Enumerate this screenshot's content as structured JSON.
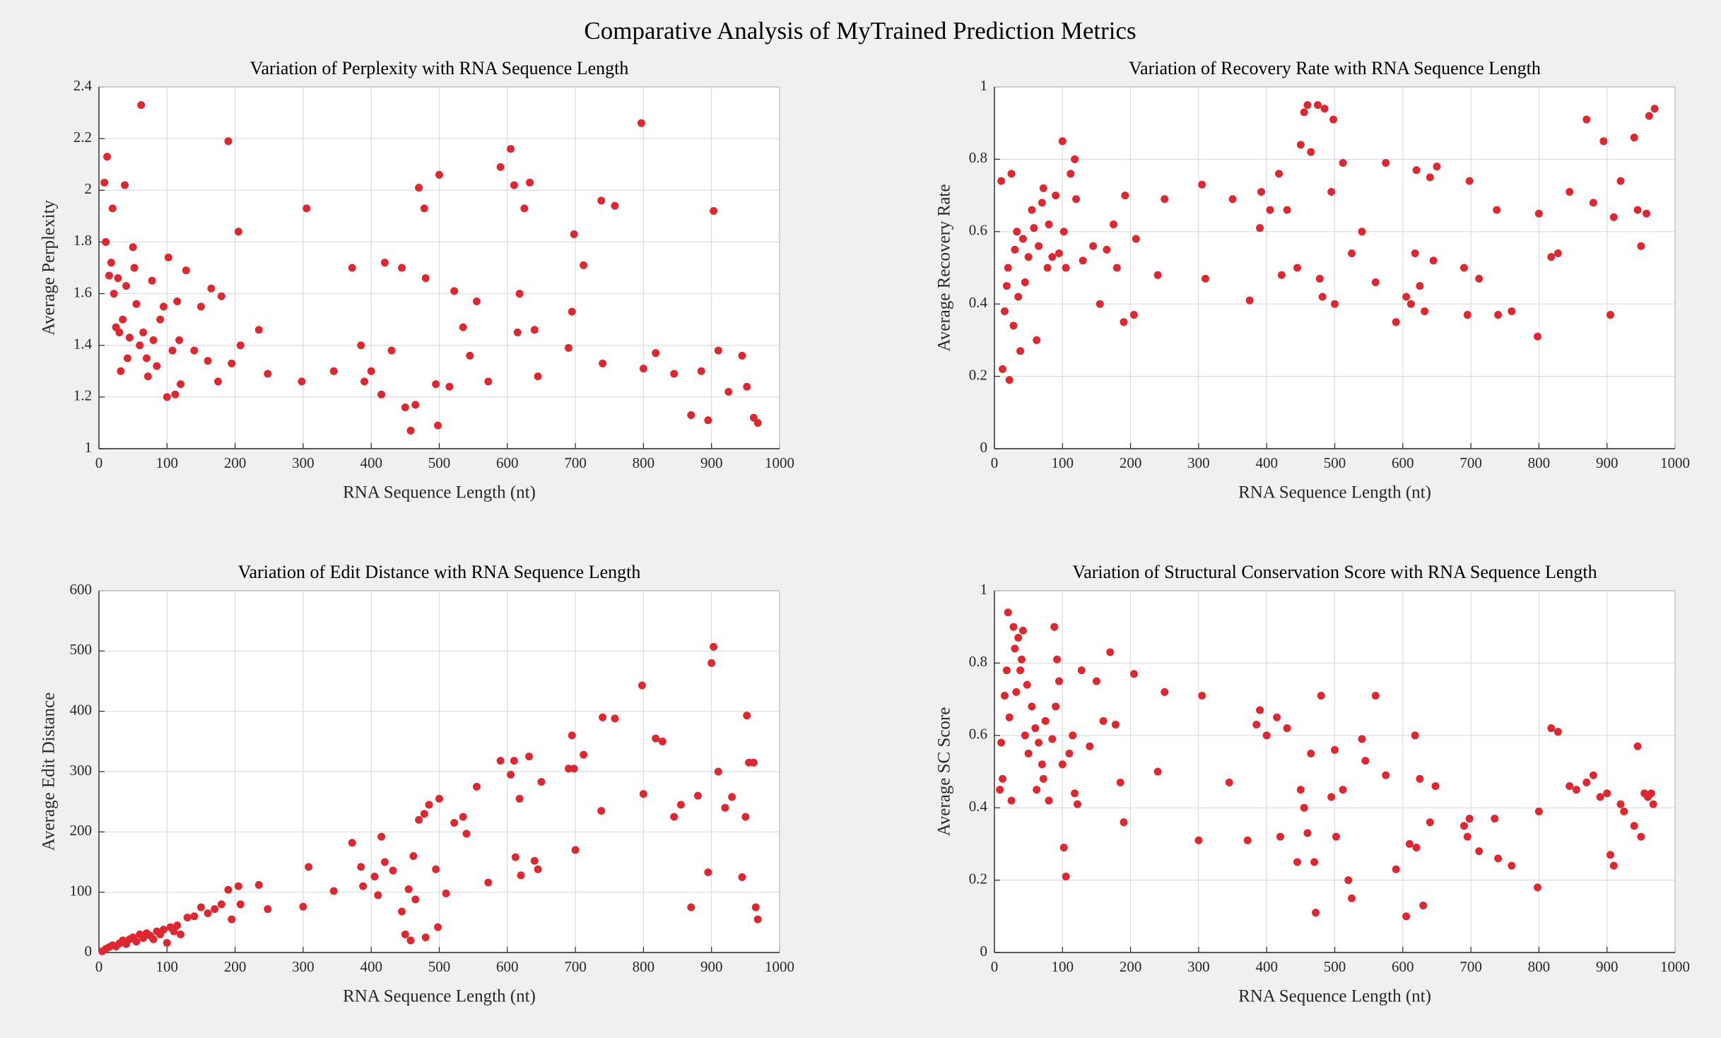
{
  "title": "Comparative Analysis of MyTrained Prediction Metrics",
  "chart_data": [
    {
      "type": "scatter",
      "title": "Variation of Perplexity with RNA Sequence Length",
      "x_label": "RNA Sequence Length (nt)",
      "y_label": "Average Perplexity",
      "color": "#e0262e",
      "grid": true,
      "xlim": [
        0,
        1000
      ],
      "xticks": [
        0,
        100,
        200,
        300,
        400,
        500,
        600,
        700,
        800,
        900,
        1000
      ],
      "ylim": [
        1,
        2.4
      ],
      "yticks": [
        1,
        1.2,
        1.4,
        1.6,
        1.8,
        2,
        2.2,
        2.4
      ],
      "x": [
        8,
        12,
        10,
        15,
        18,
        20,
        22,
        25,
        28,
        30,
        32,
        35,
        38,
        40,
        42,
        45,
        50,
        52,
        55,
        60,
        62,
        65,
        70,
        72,
        78,
        80,
        85,
        90,
        95,
        100,
        102,
        108,
        112,
        115,
        118,
        120,
        128,
        140,
        150,
        160,
        165,
        175,
        180,
        190,
        195,
        205,
        208,
        235,
        248,
        298,
        305,
        345,
        372,
        385,
        390,
        400,
        415,
        420,
        430,
        445,
        450,
        458,
        465,
        470,
        478,
        480,
        495,
        498,
        500,
        515,
        522,
        535,
        545,
        555,
        572,
        590,
        605,
        610,
        615,
        618,
        625,
        633,
        640,
        645,
        690,
        695,
        698,
        712,
        738,
        740,
        758,
        797,
        800,
        818,
        845,
        870,
        885,
        895,
        903,
        910,
        925,
        945,
        952,
        962,
        968
      ],
      "values": [
        2.03,
        2.13,
        1.8,
        1.67,
        1.72,
        1.93,
        1.6,
        1.47,
        1.66,
        1.45,
        1.3,
        1.5,
        2.02,
        1.63,
        1.35,
        1.43,
        1.78,
        1.7,
        1.56,
        1.4,
        2.33,
        1.45,
        1.35,
        1.28,
        1.65,
        1.42,
        1.32,
        1.5,
        1.55,
        1.2,
        1.74,
        1.38,
        1.21,
        1.57,
        1.42,
        1.25,
        1.69,
        1.38,
        1.55,
        1.34,
        1.62,
        1.26,
        1.59,
        2.19,
        1.33,
        1.84,
        1.4,
        1.46,
        1.29,
        1.26,
        1.93,
        1.3,
        1.7,
        1.4,
        1.26,
        1.3,
        1.21,
        1.72,
        1.38,
        1.7,
        1.16,
        1.07,
        1.17,
        2.01,
        1.93,
        1.66,
        1.25,
        1.09,
        2.06,
        1.24,
        1.61,
        1.47,
        1.36,
        1.57,
        1.26,
        2.09,
        2.16,
        2.02,
        1.45,
        1.6,
        1.93,
        2.03,
        1.46,
        1.28,
        1.39,
        1.53,
        1.83,
        1.71,
        1.96,
        1.33,
        1.94,
        2.26,
        1.31,
        1.37,
        1.29,
        1.13,
        1.3,
        1.11,
        1.92,
        1.38,
        1.22,
        1.36,
        1.24,
        1.12,
        1.1
      ]
    },
    {
      "type": "scatter",
      "title": "Variation of Recovery Rate with RNA Sequence Length",
      "x_label": "RNA Sequence Length (nt)",
      "y_label": "Average Recovery Rate",
      "color": "#e0262e",
      "grid": true,
      "xlim": [
        0,
        1000
      ],
      "xticks": [
        0,
        100,
        200,
        300,
        400,
        500,
        600,
        700,
        800,
        900,
        1000
      ],
      "ylim": [
        0,
        1
      ],
      "yticks": [
        0,
        0.2,
        0.4,
        0.6,
        0.8,
        1
      ],
      "x": [
        10,
        12,
        15,
        18,
        20,
        22,
        25,
        28,
        30,
        33,
        35,
        38,
        42,
        45,
        50,
        55,
        58,
        62,
        65,
        70,
        72,
        78,
        80,
        85,
        90,
        95,
        100,
        102,
        105,
        112,
        118,
        120,
        130,
        145,
        155,
        165,
        175,
        180,
        190,
        192,
        205,
        208,
        240,
        250,
        305,
        310,
        350,
        375,
        390,
        392,
        405,
        418,
        422,
        430,
        445,
        450,
        455,
        460,
        465,
        475,
        478,
        482,
        485,
        495,
        498,
        500,
        512,
        525,
        540,
        560,
        575,
        590,
        605,
        612,
        618,
        620,
        625,
        632,
        640,
        645,
        650,
        690,
        695,
        698,
        712,
        738,
        740,
        760,
        798,
        800,
        818,
        828,
        845,
        870,
        880,
        895,
        905,
        910,
        920,
        940,
        945,
        950,
        958,
        962,
        970
      ],
      "values": [
        0.74,
        0.22,
        0.38,
        0.45,
        0.5,
        0.19,
        0.76,
        0.34,
        0.55,
        0.6,
        0.42,
        0.27,
        0.58,
        0.46,
        0.53,
        0.66,
        0.61,
        0.3,
        0.56,
        0.68,
        0.72,
        0.5,
        0.62,
        0.53,
        0.7,
        0.54,
        0.85,
        0.6,
        0.5,
        0.76,
        0.8,
        0.69,
        0.52,
        0.56,
        0.4,
        0.55,
        0.62,
        0.5,
        0.35,
        0.7,
        0.37,
        0.58,
        0.48,
        0.69,
        0.73,
        0.47,
        0.69,
        0.41,
        0.61,
        0.71,
        0.66,
        0.76,
        0.48,
        0.66,
        0.5,
        0.84,
        0.93,
        0.95,
        0.82,
        0.95,
        0.47,
        0.42,
        0.94,
        0.71,
        0.91,
        0.4,
        0.79,
        0.54,
        0.6,
        0.46,
        0.79,
        0.35,
        0.42,
        0.4,
        0.54,
        0.77,
        0.45,
        0.38,
        0.75,
        0.52,
        0.78,
        0.5,
        0.37,
        0.74,
        0.47,
        0.66,
        0.37,
        0.38,
        0.31,
        0.65,
        0.53,
        0.54,
        0.71,
        0.91,
        0.68,
        0.85,
        0.37,
        0.64,
        0.74,
        0.86,
        0.66,
        0.56,
        0.65,
        0.92,
        0.94
      ]
    },
    {
      "type": "scatter",
      "title": "Variation of Edit Distance with RNA Sequence Length",
      "x_label": "RNA Sequence Length (nt)",
      "y_label": "Average Edit Distance",
      "color": "#e0262e",
      "grid": true,
      "xlim": [
        0,
        1000
      ],
      "xticks": [
        0,
        100,
        200,
        300,
        400,
        500,
        600,
        700,
        800,
        900,
        1000
      ],
      "ylim": [
        0,
        600
      ],
      "yticks": [
        0,
        100,
        200,
        300,
        400,
        500,
        600
      ],
      "x": [
        5,
        10,
        15,
        20,
        25,
        30,
        35,
        40,
        45,
        50,
        55,
        60,
        65,
        70,
        75,
        80,
        85,
        90,
        95,
        100,
        105,
        110,
        115,
        120,
        130,
        140,
        150,
        160,
        170,
        180,
        190,
        195,
        205,
        208,
        235,
        248,
        300,
        308,
        345,
        372,
        385,
        388,
        405,
        410,
        415,
        420,
        432,
        445,
        450,
        455,
        458,
        462,
        465,
        470,
        478,
        480,
        485,
        495,
        498,
        500,
        510,
        522,
        535,
        540,
        555,
        572,
        590,
        605,
        610,
        612,
        618,
        620,
        632,
        640,
        645,
        650,
        690,
        695,
        698,
        700,
        712,
        738,
        740,
        758,
        798,
        800,
        818,
        828,
        845,
        855,
        870,
        880,
        895,
        900,
        903,
        910,
        920,
        930,
        945,
        950,
        952,
        955,
        962,
        965,
        968
      ],
      "values": [
        2,
        6,
        9,
        12,
        10,
        15,
        20,
        14,
        22,
        25,
        18,
        30,
        24,
        32,
        28,
        22,
        35,
        30,
        38,
        16,
        42,
        35,
        45,
        30,
        58,
        60,
        75,
        65,
        72,
        80,
        104,
        55,
        110,
        80,
        112,
        72,
        76,
        142,
        102,
        182,
        142,
        110,
        126,
        95,
        192,
        150,
        136,
        68,
        30,
        105,
        20,
        160,
        88,
        220,
        230,
        25,
        245,
        138,
        42,
        255,
        98,
        215,
        225,
        197,
        275,
        116,
        318,
        295,
        318,
        158,
        255,
        128,
        325,
        152,
        138,
        283,
        305,
        360,
        305,
        170,
        328,
        235,
        390,
        388,
        443,
        263,
        355,
        350,
        225,
        245,
        75,
        260,
        133,
        480,
        507,
        300,
        240,
        258,
        125,
        225,
        393,
        315,
        315,
        75,
        55
      ]
    },
    {
      "type": "scatter",
      "title": "Variation of Structural Conservation Score with RNA Sequence Length",
      "x_label": "RNA Sequence Length (nt)",
      "y_label": "Average SC Score",
      "color": "#e0262e",
      "grid": true,
      "xlim": [
        0,
        1000
      ],
      "xticks": [
        0,
        100,
        200,
        300,
        400,
        500,
        600,
        700,
        800,
        900,
        1000
      ],
      "ylim": [
        0,
        1
      ],
      "yticks": [
        0,
        0.2,
        0.4,
        0.6,
        0.8,
        1
      ],
      "x": [
        8,
        10,
        12,
        15,
        18,
        20,
        22,
        25,
        28,
        30,
        32,
        35,
        38,
        40,
        42,
        45,
        48,
        50,
        55,
        60,
        62,
        65,
        70,
        72,
        75,
        80,
        85,
        88,
        90,
        92,
        95,
        100,
        102,
        105,
        110,
        115,
        118,
        122,
        128,
        140,
        150,
        160,
        170,
        178,
        185,
        190,
        205,
        240,
        250,
        300,
        305,
        345,
        372,
        385,
        390,
        400,
        415,
        420,
        430,
        445,
        450,
        455,
        460,
        465,
        470,
        472,
        480,
        495,
        500,
        502,
        512,
        520,
        525,
        540,
        545,
        560,
        575,
        590,
        605,
        610,
        618,
        620,
        625,
        630,
        640,
        648,
        690,
        695,
        698,
        712,
        735,
        740,
        760,
        798,
        800,
        818,
        828,
        845,
        855,
        870,
        880,
        890,
        900,
        905,
        910,
        920,
        925,
        940,
        945,
        950,
        955,
        960,
        965,
        968
      ],
      "values": [
        0.45,
        0.58,
        0.48,
        0.71,
        0.78,
        0.94,
        0.65,
        0.42,
        0.9,
        0.84,
        0.72,
        0.87,
        0.78,
        0.81,
        0.89,
        0.6,
        0.74,
        0.55,
        0.68,
        0.62,
        0.45,
        0.58,
        0.52,
        0.48,
        0.64,
        0.42,
        0.59,
        0.9,
        0.68,
        0.81,
        0.75,
        0.52,
        0.29,
        0.21,
        0.55,
        0.6,
        0.44,
        0.41,
        0.78,
        0.57,
        0.75,
        0.64,
        0.83,
        0.63,
        0.47,
        0.36,
        0.77,
        0.5,
        0.72,
        0.31,
        0.71,
        0.47,
        0.31,
        0.63,
        0.67,
        0.6,
        0.65,
        0.32,
        0.62,
        0.25,
        0.45,
        0.4,
        0.33,
        0.55,
        0.25,
        0.11,
        0.71,
        0.43,
        0.56,
        0.32,
        0.45,
        0.2,
        0.15,
        0.59,
        0.53,
        0.71,
        0.49,
        0.23,
        0.1,
        0.3,
        0.6,
        0.29,
        0.48,
        0.13,
        0.36,
        0.46,
        0.35,
        0.32,
        0.37,
        0.28,
        0.37,
        0.26,
        0.24,
        0.18,
        0.39,
        0.62,
        0.61,
        0.46,
        0.45,
        0.47,
        0.49,
        0.43,
        0.44,
        0.27,
        0.24,
        0.41,
        0.39,
        0.35,
        0.57,
        0.32,
        0.44,
        0.43,
        0.44,
        0.41
      ]
    }
  ]
}
